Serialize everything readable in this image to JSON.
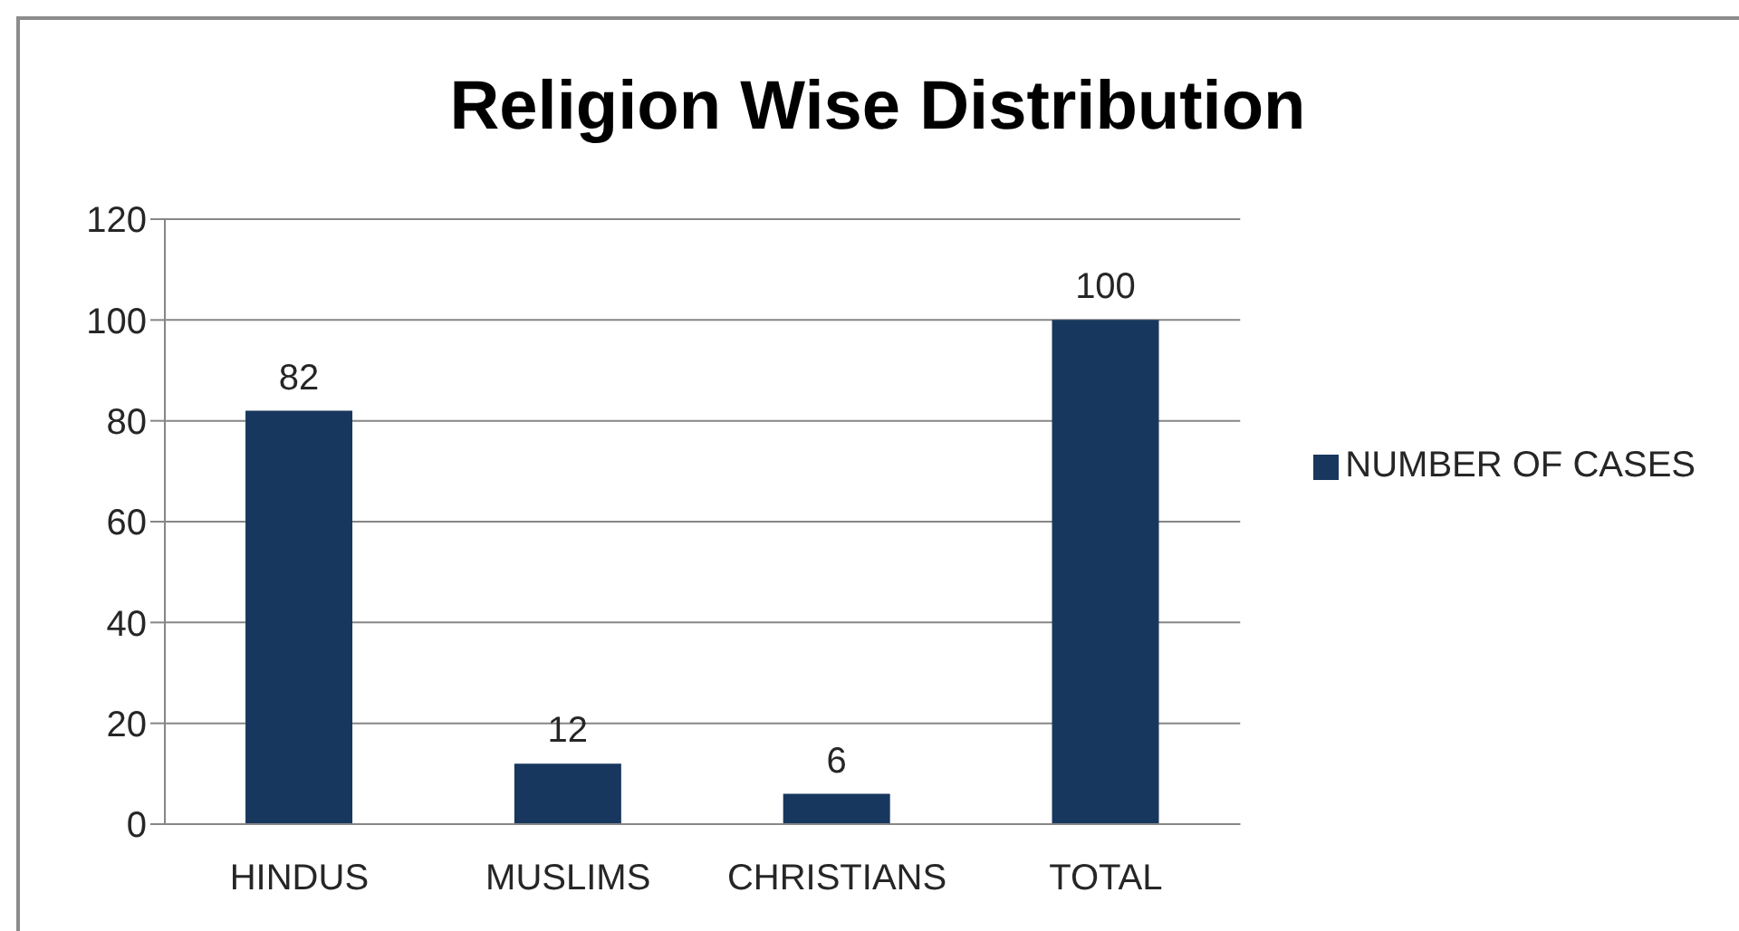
{
  "chart_data": {
    "type": "bar",
    "title": "Religion Wise Distribution",
    "categories": [
      "HINDUS",
      "MUSLIMS",
      "CHRISTIANS",
      "TOTAL"
    ],
    "series": [
      {
        "name": "NUMBER OF CASES",
        "color": "#17375e",
        "values": [
          82,
          12,
          6,
          100
        ]
      }
    ],
    "ylim": [
      0,
      120
    ],
    "yticks": [
      0,
      20,
      40,
      60,
      80,
      100,
      120
    ],
    "grid": "y",
    "legend": "right",
    "data_labels": true
  }
}
